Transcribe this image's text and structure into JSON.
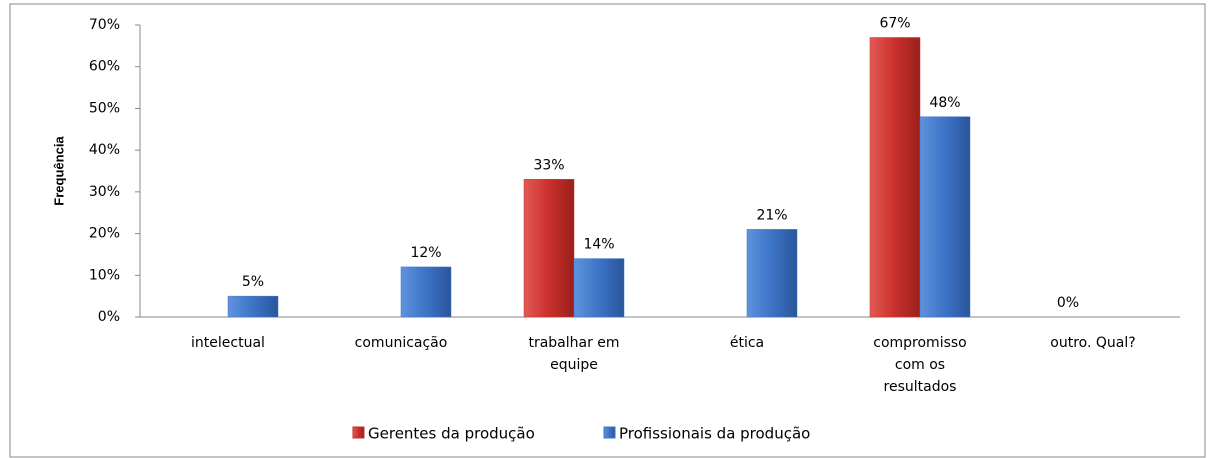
{
  "chart_data": {
    "type": "bar",
    "y_label": "Frequência",
    "categories": [
      "intelectual",
      "comunicação",
      "trabalhar em equipe",
      "ética",
      "compromisso com os resultados",
      "outro. Qual?"
    ],
    "series": [
      {
        "name": "Gerentes da produção",
        "color": "#c0302d",
        "values": [
          0,
          0,
          33,
          0,
          67,
          0
        ],
        "value_labels": [
          null,
          null,
          "33%",
          null,
          "67%",
          "0%"
        ]
      },
      {
        "name": "Profissionais da produção",
        "color": "#3d73c6",
        "values": [
          5,
          12,
          14,
          21,
          48,
          null
        ],
        "value_labels": [
          "5%",
          "12%",
          "14%",
          "21%",
          "48%",
          null
        ]
      }
    ],
    "ylim": [
      0,
      70
    ],
    "yticks": [
      {
        "value": 0,
        "label": "0%"
      },
      {
        "value": 10,
        "label": "10%"
      },
      {
        "value": 20,
        "label": "20%"
      },
      {
        "value": 30,
        "label": "30%"
      },
      {
        "value": 40,
        "label": "40%"
      },
      {
        "value": 50,
        "label": "50%"
      },
      {
        "value": 60,
        "label": "60%"
      },
      {
        "value": 70,
        "label": "70%"
      }
    ],
    "legend": "bottom"
  }
}
